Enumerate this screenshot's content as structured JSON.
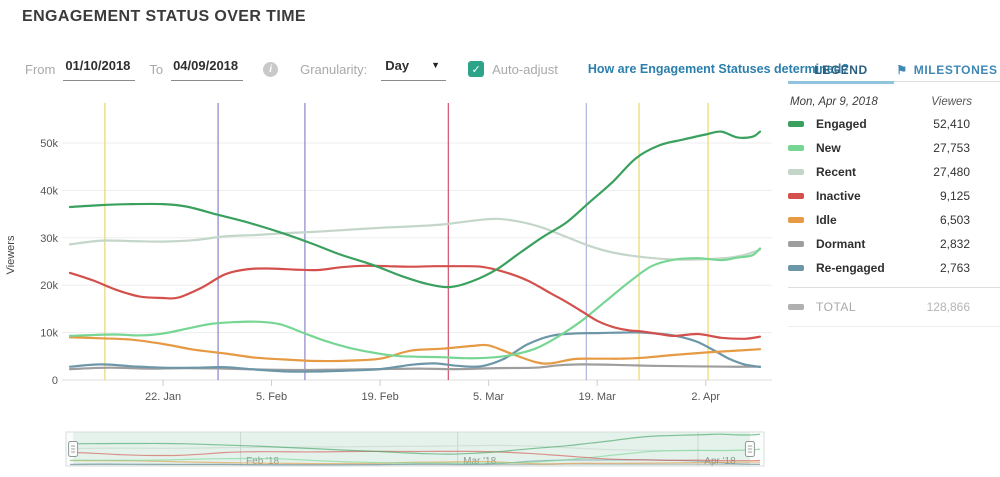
{
  "title": "ENGAGEMENT STATUS OVER TIME",
  "filters": {
    "from_label": "From",
    "from_value": "01/10/2018",
    "to_label": "To",
    "to_value": "04/09/2018",
    "info_icon": "i",
    "granularity_label": "Granularity:",
    "granularity_value": "Day",
    "auto_adjust_label": "Auto-adjust",
    "auto_adjust_checked": true,
    "checkmark": "✓",
    "caret": "▼",
    "help_link": "How are Engagement Statuses determined?"
  },
  "legend_panel": {
    "tabs": [
      {
        "label": "LEGEND",
        "active": true
      },
      {
        "label": "MILESTONES",
        "active": false,
        "icon": "flag",
        "icon_glyph": "⚑"
      }
    ],
    "tooltip_date": "Mon, Apr 9, 2018",
    "viewers_header": "Viewers",
    "rows": [
      {
        "name": "Engaged",
        "value": "52,410",
        "color": "#3aa05e"
      },
      {
        "name": "New",
        "value": "27,753",
        "color": "#77d693"
      },
      {
        "name": "Recent",
        "value": "27,480",
        "color": "#c4d6c9"
      },
      {
        "name": "Inactive",
        "value": "9,125",
        "color": "#d4504c"
      },
      {
        "name": "Idle",
        "value": "6,503",
        "color": "#e59a43"
      },
      {
        "name": "Dormant",
        "value": "2,832",
        "color": "#9e9e9e"
      },
      {
        "name": "Re-engaged",
        "value": "2,763",
        "color": "#6d97a8"
      }
    ],
    "total": {
      "label": "TOTAL",
      "value": "128,866"
    }
  },
  "chart_data": {
    "type": "line",
    "title": "Engagement Status Over Time",
    "xlabel": "",
    "ylabel": "Viewers",
    "x_unit": "days since 2018-01-10 (Jan 10 = 0, Apr 9 = 89)",
    "x_domain": [
      0,
      89
    ],
    "ylim": [
      0,
      55000
    ],
    "grid": "horizontal",
    "legend_position": "right-panel",
    "y_ticks": [
      {
        "v": 0,
        "label": "0"
      },
      {
        "v": 10000,
        "label": "10k"
      },
      {
        "v": 20000,
        "label": "20k"
      },
      {
        "v": 30000,
        "label": "30k"
      },
      {
        "v": 40000,
        "label": "40k"
      },
      {
        "v": 50000,
        "label": "50k"
      }
    ],
    "x_ticks": [
      {
        "day": 12,
        "label": "22. Jan"
      },
      {
        "day": 26,
        "label": "5. Feb"
      },
      {
        "day": 40,
        "label": "19. Feb"
      },
      {
        "day": 54,
        "label": "5. Mar"
      },
      {
        "day": 68,
        "label": "19. Mar"
      },
      {
        "day": 82,
        "label": "2. Apr"
      }
    ],
    "milestones": [
      {
        "day": 4.5,
        "color": "#e9d45e"
      },
      {
        "day": 19.1,
        "color": "#8278c9"
      },
      {
        "day": 30.3,
        "color": "#8278c9"
      },
      {
        "day": 48.8,
        "color": "#d2415f"
      },
      {
        "day": 66.6,
        "color": "#a8aedb"
      },
      {
        "day": 73.4,
        "color": "#e9d45e"
      },
      {
        "day": 82.3,
        "color": "#e9d45e"
      }
    ],
    "series": [
      {
        "name": "Engaged",
        "color": "#3aa05e",
        "points": [
          [
            0,
            36500
          ],
          [
            4,
            36900
          ],
          [
            8,
            37100
          ],
          [
            12,
            37100
          ],
          [
            15,
            36600
          ],
          [
            19,
            34900
          ],
          [
            23,
            33200
          ],
          [
            27,
            31200
          ],
          [
            31,
            28900
          ],
          [
            35,
            26400
          ],
          [
            39,
            24300
          ],
          [
            43,
            21800
          ],
          [
            46,
            20300
          ],
          [
            49,
            19600
          ],
          [
            52,
            20900
          ],
          [
            55,
            23300
          ],
          [
            58,
            26800
          ],
          [
            61,
            30200
          ],
          [
            64,
            33200
          ],
          [
            67,
            37500
          ],
          [
            70,
            41800
          ],
          [
            73,
            46800
          ],
          [
            76,
            49500
          ],
          [
            79,
            50700
          ],
          [
            82,
            51800
          ],
          [
            84,
            52400
          ],
          [
            86,
            51200
          ],
          [
            88,
            51300
          ],
          [
            89,
            52410
          ]
        ]
      },
      {
        "name": "New",
        "color": "#77d693",
        "points": [
          [
            0,
            9300
          ],
          [
            3,
            9500
          ],
          [
            6,
            9600
          ],
          [
            9,
            9400
          ],
          [
            12,
            9800
          ],
          [
            15,
            10800
          ],
          [
            18,
            11800
          ],
          [
            21,
            12200
          ],
          [
            24,
            12300
          ],
          [
            27,
            11800
          ],
          [
            30,
            10000
          ],
          [
            33,
            8200
          ],
          [
            36,
            6800
          ],
          [
            39,
            5800
          ],
          [
            42,
            5100
          ],
          [
            45,
            4900
          ],
          [
            48,
            4800
          ],
          [
            51,
            4600
          ],
          [
            54,
            4700
          ],
          [
            57,
            5300
          ],
          [
            60,
            6600
          ],
          [
            63,
            9200
          ],
          [
            66,
            12500
          ],
          [
            69,
            16500
          ],
          [
            72,
            20500
          ],
          [
            75,
            24000
          ],
          [
            78,
            25400
          ],
          [
            81,
            25700
          ],
          [
            84,
            25300
          ],
          [
            86,
            25800
          ],
          [
            88,
            26300
          ],
          [
            89,
            27753
          ]
        ]
      },
      {
        "name": "Recent",
        "color": "#c4d6c9",
        "points": [
          [
            0,
            28600
          ],
          [
            4,
            29400
          ],
          [
            8,
            29300
          ],
          [
            12,
            29200
          ],
          [
            16,
            29500
          ],
          [
            20,
            30300
          ],
          [
            24,
            30600
          ],
          [
            28,
            31000
          ],
          [
            32,
            31300
          ],
          [
            36,
            31700
          ],
          [
            40,
            32100
          ],
          [
            44,
            32400
          ],
          [
            48,
            32800
          ],
          [
            52,
            33600
          ],
          [
            55,
            34000
          ],
          [
            58,
            33400
          ],
          [
            61,
            32100
          ],
          [
            64,
            30200
          ],
          [
            67,
            28300
          ],
          [
            70,
            26900
          ],
          [
            73,
            26100
          ],
          [
            76,
            25600
          ],
          [
            79,
            25400
          ],
          [
            82,
            25500
          ],
          [
            85,
            25800
          ],
          [
            87,
            26400
          ],
          [
            89,
            27480
          ]
        ]
      },
      {
        "name": "Inactive",
        "color": "#d4504c",
        "points": [
          [
            0,
            22600
          ],
          [
            3,
            21000
          ],
          [
            6,
            19000
          ],
          [
            9,
            17600
          ],
          [
            12,
            17300
          ],
          [
            14,
            17400
          ],
          [
            17,
            19500
          ],
          [
            20,
            22300
          ],
          [
            23,
            23400
          ],
          [
            26,
            23500
          ],
          [
            29,
            23300
          ],
          [
            32,
            23200
          ],
          [
            35,
            23800
          ],
          [
            38,
            24100
          ],
          [
            41,
            24000
          ],
          [
            44,
            23900
          ],
          [
            47,
            24000
          ],
          [
            50,
            24000
          ],
          [
            53,
            23900
          ],
          [
            56,
            22800
          ],
          [
            59,
            21000
          ],
          [
            62,
            18300
          ],
          [
            64,
            16500
          ],
          [
            66,
            14500
          ],
          [
            68,
            12500
          ],
          [
            70,
            11200
          ],
          [
            72,
            10500
          ],
          [
            74,
            10200
          ],
          [
            76,
            9700
          ],
          [
            78,
            9300
          ],
          [
            81,
            9700
          ],
          [
            84,
            8900
          ],
          [
            87,
            8700
          ],
          [
            89,
            9125
          ]
        ]
      },
      {
        "name": "Idle",
        "color": "#e59a43",
        "points": [
          [
            0,
            9000
          ],
          [
            4,
            8800
          ],
          [
            8,
            8500
          ],
          [
            12,
            7600
          ],
          [
            16,
            6400
          ],
          [
            20,
            5600
          ],
          [
            24,
            4700
          ],
          [
            28,
            4300
          ],
          [
            32,
            4000
          ],
          [
            36,
            4100
          ],
          [
            40,
            4500
          ],
          [
            44,
            6200
          ],
          [
            48,
            6600
          ],
          [
            52,
            7200
          ],
          [
            54,
            7300
          ],
          [
            57,
            5500
          ],
          [
            60,
            3800
          ],
          [
            62,
            3500
          ],
          [
            65,
            4400
          ],
          [
            68,
            4500
          ],
          [
            71,
            4500
          ],
          [
            74,
            4700
          ],
          [
            78,
            5300
          ],
          [
            82,
            5800
          ],
          [
            86,
            6200
          ],
          [
            89,
            6503
          ]
        ]
      },
      {
        "name": "Dormant",
        "color": "#9e9e9e",
        "points": [
          [
            0,
            2300
          ],
          [
            5,
            2600
          ],
          [
            10,
            2400
          ],
          [
            15,
            2500
          ],
          [
            20,
            2400
          ],
          [
            25,
            2200
          ],
          [
            30,
            2100
          ],
          [
            35,
            2200
          ],
          [
            40,
            2300
          ],
          [
            45,
            2400
          ],
          [
            50,
            2300
          ],
          [
            55,
            2500
          ],
          [
            60,
            2600
          ],
          [
            63,
            3100
          ],
          [
            66,
            3300
          ],
          [
            70,
            3200
          ],
          [
            75,
            3000
          ],
          [
            80,
            2900
          ],
          [
            85,
            2800
          ],
          [
            89,
            2832
          ]
        ]
      },
      {
        "name": "Re-engaged",
        "color": "#6d97a8",
        "points": [
          [
            0,
            2800
          ],
          [
            4,
            3300
          ],
          [
            8,
            2900
          ],
          [
            12,
            2600
          ],
          [
            16,
            2600
          ],
          [
            20,
            2700
          ],
          [
            24,
            2200
          ],
          [
            28,
            1800
          ],
          [
            32,
            1800
          ],
          [
            36,
            2000
          ],
          [
            40,
            2300
          ],
          [
            44,
            3200
          ],
          [
            47,
            3500
          ],
          [
            50,
            3000
          ],
          [
            53,
            2900
          ],
          [
            56,
            4500
          ],
          [
            59,
            7500
          ],
          [
            62,
            9300
          ],
          [
            65,
            9800
          ],
          [
            68,
            9900
          ],
          [
            71,
            10000
          ],
          [
            74,
            10000
          ],
          [
            77,
            9600
          ],
          [
            79,
            9000
          ],
          [
            81,
            8000
          ],
          [
            83,
            6300
          ],
          [
            85,
            4500
          ],
          [
            87,
            3300
          ],
          [
            89,
            2763
          ]
        ]
      }
    ]
  },
  "mini_chart": {
    "x_ticks": [
      {
        "day": 22,
        "label": "Feb '18"
      },
      {
        "day": 50,
        "label": "Mar '18"
      },
      {
        "day": 81,
        "label": "Apr '18"
      }
    ],
    "selection_days": [
      0.4,
      87.7
    ]
  }
}
